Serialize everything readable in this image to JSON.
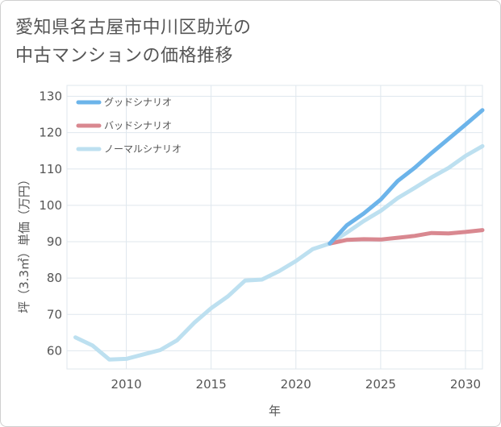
{
  "title": "愛知県名古屋市中川区助光の\n中古マンションの価格推移",
  "chart_data": {
    "type": "line",
    "title": "愛知県名古屋市中川区助光の中古マンションの価格推移",
    "xlabel": "年",
    "ylabel": "坪（3.3㎡）単価（万円）",
    "xlim": [
      2006.5,
      2031
    ],
    "ylim": [
      55,
      133
    ],
    "xticks": [
      2010,
      2015,
      2020,
      2025,
      2030
    ],
    "yticks": [
      60,
      70,
      80,
      90,
      100,
      110,
      120,
      130
    ],
    "grid": true,
    "legend_position": "top-left",
    "series": [
      {
        "name": "グッドシナリオ",
        "color": "#6cb4ea",
        "x": [
          2022,
          2023,
          2024,
          2025,
          2026,
          2027,
          2028,
          2029,
          2030,
          2031
        ],
        "y": [
          89.5,
          94.5,
          97.8,
          101.6,
          106.7,
          110.3,
          114.4,
          118.3,
          122.2,
          126.2
        ]
      },
      {
        "name": "バッドシナリオ",
        "color": "#d98890",
        "x": [
          2022,
          2023,
          2024,
          2025,
          2026,
          2027,
          2028,
          2029,
          2030,
          2031
        ],
        "y": [
          89.5,
          90.5,
          90.7,
          90.6,
          91.1,
          91.6,
          92.4,
          92.3,
          92.7,
          93.2
        ]
      },
      {
        "name": "ノーマルシナリオ",
        "color": "#bde0f0",
        "x": [
          2007,
          2008,
          2009,
          2010,
          2011,
          2012,
          2013,
          2014,
          2015,
          2016,
          2017,
          2018,
          2019,
          2020,
          2021,
          2022,
          2023,
          2024,
          2025,
          2026,
          2027,
          2028,
          2029,
          2030,
          2031
        ],
        "y": [
          63.7,
          61.5,
          57.6,
          57.8,
          59.0,
          60.2,
          62.9,
          67.7,
          71.7,
          75.0,
          79.3,
          79.6,
          81.9,
          84.7,
          88.0,
          89.5,
          92.5,
          95.7,
          98.5,
          102.0,
          104.8,
          107.7,
          110.3,
          113.6,
          116.3
        ]
      }
    ]
  }
}
